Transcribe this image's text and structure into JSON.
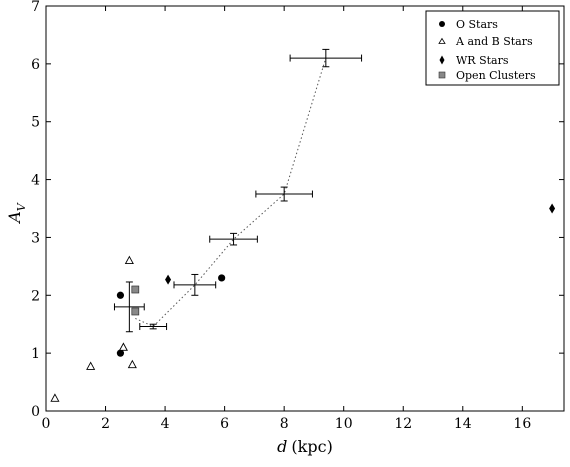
{
  "chart_data": {
    "type": "scatter",
    "xlabel_var": "d",
    "xlabel_unit": "(kpc)",
    "ylabel_var": "A",
    "ylabel_sub": "V",
    "xlim": [
      0,
      17.4
    ],
    "ylim": [
      0,
      7
    ],
    "xticks": [
      0,
      2,
      4,
      6,
      8,
      10,
      12,
      14,
      16
    ],
    "yticks": [
      0,
      1,
      2,
      3,
      4,
      5,
      6,
      7
    ],
    "grid": false,
    "legend_position": "top-right",
    "legend": [
      {
        "label": "O Stars",
        "marker": "circle"
      },
      {
        "label": "A and B Stars",
        "marker": "triangle-open"
      },
      {
        "label": "WR Stars",
        "marker": "diamond"
      },
      {
        "label": "Open Clusters",
        "marker": "square-gray"
      }
    ],
    "series": [
      {
        "name": "O Stars",
        "marker": "circle",
        "color": "#000000",
        "points": [
          {
            "x": 2.5,
            "y": 2.0
          },
          {
            "x": 2.5,
            "y": 1.0
          },
          {
            "x": 5.9,
            "y": 2.3
          }
        ]
      },
      {
        "name": "A and B Stars",
        "marker": "triangle-open",
        "color": "#000000",
        "points": [
          {
            "x": 0.3,
            "y": 0.22
          },
          {
            "x": 1.5,
            "y": 0.77
          },
          {
            "x": 2.6,
            "y": 1.1
          },
          {
            "x": 2.8,
            "y": 2.6
          },
          {
            "x": 2.9,
            "y": 0.8
          }
        ]
      },
      {
        "name": "WR Stars",
        "marker": "diamond",
        "color": "#000000",
        "points": [
          {
            "x": 4.1,
            "y": 2.27
          },
          {
            "x": 17.0,
            "y": 3.5
          }
        ]
      },
      {
        "name": "Open Clusters",
        "marker": "square-gray",
        "color": "#888888",
        "points": [
          {
            "x": 3.0,
            "y": 2.1
          },
          {
            "x": 3.0,
            "y": 1.72
          }
        ]
      }
    ],
    "binned": [
      {
        "x": 2.8,
        "y": 1.8,
        "xerr": 0.5,
        "yerr": 0.43
      },
      {
        "x": 3.6,
        "y": 1.46,
        "xerr": 0.45,
        "yerr": 0.04
      },
      {
        "x": 5.0,
        "y": 2.18,
        "xerr": 0.7,
        "yerr": 0.18
      },
      {
        "x": 6.3,
        "y": 2.97,
        "xerr": 0.8,
        "yerr": 0.1
      },
      {
        "x": 8.0,
        "y": 3.75,
        "xerr": 0.95,
        "yerr": 0.12
      },
      {
        "x": 9.4,
        "y": 6.1,
        "xerr": 1.2,
        "yerr": 0.15
      }
    ],
    "trend_line": [
      {
        "x": 3.0,
        "y": 1.6
      },
      {
        "x": 3.6,
        "y": 1.46
      },
      {
        "x": 5.0,
        "y": 2.18
      },
      {
        "x": 6.3,
        "y": 2.97
      },
      {
        "x": 8.0,
        "y": 3.75
      },
      {
        "x": 9.4,
        "y": 6.1
      }
    ]
  }
}
